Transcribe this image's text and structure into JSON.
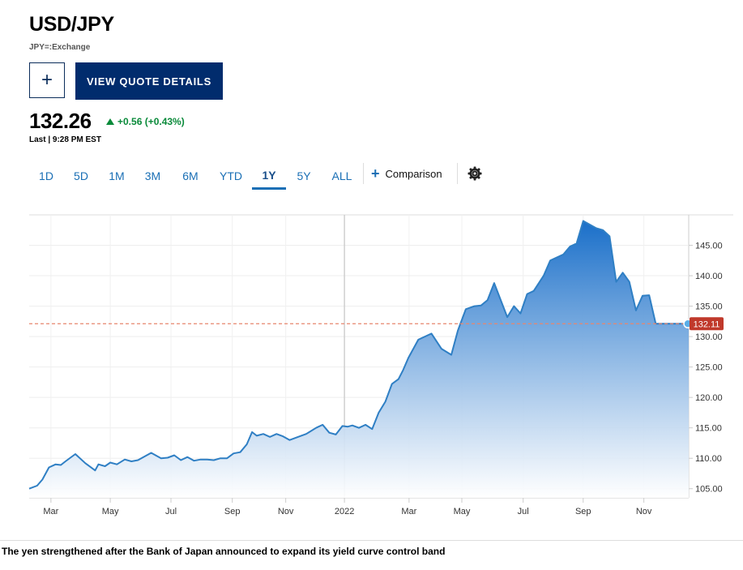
{
  "header": {
    "symbol": "USD/JPY",
    "exchange": "JPY=:Exchange"
  },
  "actions": {
    "add_label": "+",
    "quote_label": "VIEW QUOTE DETAILS"
  },
  "quote": {
    "price": "132.26",
    "change": "+0.56 (+0.43%)",
    "last": "Last | 9:28 PM EST"
  },
  "tabs": [
    "1D",
    "5D",
    "1M",
    "3M",
    "6M",
    "YTD",
    "1Y",
    "5Y",
    "ALL"
  ],
  "active_tab": "1Y",
  "comparison_label": "Comparison",
  "icons": {
    "add": "plus-icon",
    "comparison": "plus-icon",
    "settings": "gear-icon"
  },
  "colors": {
    "line": "#2f7fc4",
    "positive": "#0a8a3a",
    "button": "#012c6d",
    "last_price": "#c0392b"
  },
  "chart_data": {
    "type": "area",
    "x_ticks": [
      "Mar",
      "May",
      "Jul",
      "Sep",
      "Nov",
      "2022",
      "Mar",
      "May",
      "Jul",
      "Sep",
      "Nov"
    ],
    "y_ticks": [
      105,
      110,
      115,
      120,
      125,
      130,
      135,
      140,
      145
    ],
    "ylim": [
      103.5,
      150
    ],
    "last_price_label": "132.11",
    "last_price": 132.11,
    "series": [
      {
        "x_frac": [
          0,
          0.012,
          0.02,
          0.03,
          0.04,
          0.048,
          0.055,
          0.07,
          0.085,
          0.1,
          0.105,
          0.115,
          0.123,
          0.133,
          0.145,
          0.155,
          0.165,
          0.175,
          0.185,
          0.2,
          0.21,
          0.22,
          0.23,
          0.24,
          0.25,
          0.26,
          0.27,
          0.28,
          0.29,
          0.3,
          0.31,
          0.32,
          0.33,
          0.338,
          0.345,
          0.355,
          0.365,
          0.375,
          0.385,
          0.395,
          0.41,
          0.42,
          0.435,
          0.445,
          0.455,
          0.465,
          0.475,
          0.483,
          0.49,
          0.5,
          0.51,
          0.52,
          0.53,
          0.54,
          0.55,
          0.56,
          0.567,
          0.575,
          0.59,
          0.61,
          0.625,
          0.64,
          0.65,
          0.662,
          0.675,
          0.685,
          0.695,
          0.705,
          0.715,
          0.725,
          0.735,
          0.745,
          0.755,
          0.765,
          0.78,
          0.79,
          0.8,
          0.81,
          0.82,
          0.83,
          0.84,
          0.86,
          0.87,
          0.88,
          0.89,
          0.9,
          0.91,
          0.92,
          0.93,
          0.94,
          0.95,
          0.96,
          0.97,
          0.98,
          0.99,
          1.0
        ],
        "values": [
          105.0,
          105.5,
          106.5,
          108.5,
          109.0,
          108.9,
          109.5,
          110.7,
          109.2,
          108.0,
          109.0,
          108.7,
          109.3,
          109.0,
          109.8,
          109.5,
          109.7,
          110.3,
          110.9,
          110.0,
          110.1,
          110.5,
          109.7,
          110.2,
          109.6,
          109.8,
          109.8,
          109.7,
          110.0,
          110.0,
          110.8,
          111.0,
          112.3,
          114.3,
          113.7,
          114.0,
          113.5,
          114.0,
          113.6,
          113.0,
          113.6,
          114.0,
          115.0,
          115.5,
          114.2,
          113.9,
          115.3,
          115.2,
          115.4,
          115.0,
          115.5,
          114.8,
          117.5,
          119.3,
          122.2,
          123.0,
          124.5,
          126.5,
          129.5,
          130.5,
          128.0,
          127.0,
          131.0,
          134.5,
          135.0,
          135.1,
          136.0,
          138.8,
          136.0,
          133.2,
          135.0,
          133.8,
          137.0,
          137.5,
          140.0,
          142.5,
          143.0,
          143.5,
          144.8,
          145.3,
          149.0,
          147.8,
          147.5,
          146.5,
          139.0,
          140.5,
          139.0,
          134.3,
          136.7,
          136.8,
          132.11,
          132.11,
          132.11,
          132.11,
          132.11,
          132.11
        ]
      }
    ]
  },
  "caption": "The yen strengthened after the Bank of Japan announced to expand its yield curve control band"
}
